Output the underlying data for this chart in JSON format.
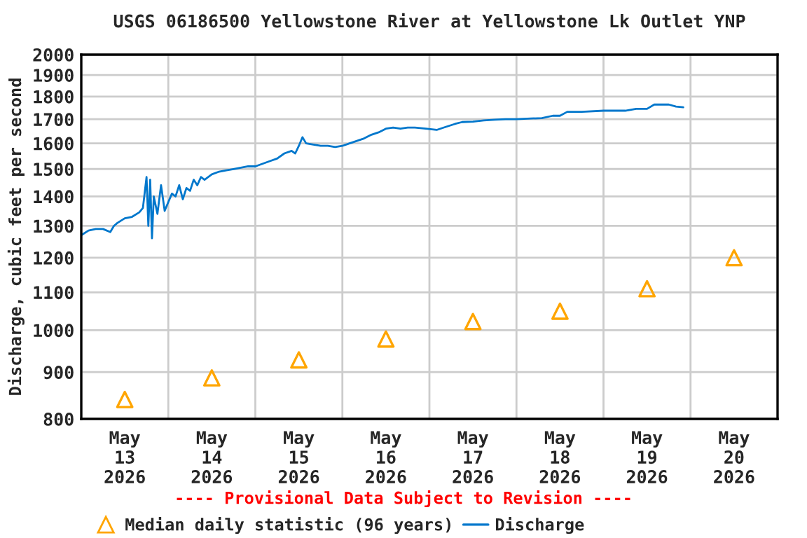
{
  "chart_data": {
    "type": "line",
    "title": "USGS 06186500 Yellowstone River at Yellowstone Lk Outlet YNP",
    "ylabel": "Discharge, cubic feet per second",
    "annotations": [
      "---- Provisional Data Subject to Revision ----"
    ],
    "log": "y",
    "grid": true,
    "legend": "bottom",
    "ylim": [
      800,
      2000
    ],
    "yticks": [
      800,
      900,
      1000,
      1100,
      1200,
      1300,
      1400,
      1500,
      1600,
      1700,
      1800,
      1900,
      2000
    ],
    "xlim": [
      "2026-05-13T00:00",
      "2026-05-21T00:00"
    ],
    "xticks": [
      {
        "value": "2026-05-13T00:00",
        "label": null
      },
      {
        "value": "2026-05-13T12:00",
        "label": "May\n13\n2026"
      },
      {
        "value": "2026-05-14T00:00",
        "label": null
      },
      {
        "value": "2026-05-14T12:00",
        "label": "May\n14\n2026"
      },
      {
        "value": "2026-05-15T00:00",
        "label": null
      },
      {
        "value": "2026-05-15T12:00",
        "label": "May\n15\n2026"
      },
      {
        "value": "2026-05-16T00:00",
        "label": null
      },
      {
        "value": "2026-05-16T12:00",
        "label": "May\n16\n2026"
      },
      {
        "value": "2026-05-17T00:00",
        "label": null
      },
      {
        "value": "2026-05-17T12:00",
        "label": "May\n17\n2026"
      },
      {
        "value": "2026-05-18T00:00",
        "label": null
      },
      {
        "value": "2026-05-18T12:00",
        "label": "May\n18\n2026"
      },
      {
        "value": "2026-05-19T00:00",
        "label": null
      },
      {
        "value": "2026-05-19T12:00",
        "label": "May\n19\n2026"
      },
      {
        "value": "2026-05-20T00:00",
        "label": null
      },
      {
        "value": "2026-05-20T12:00",
        "label": "May\n20\n2026"
      },
      {
        "value": "2026-05-21T00:00",
        "label": null
      }
    ],
    "series": [
      {
        "name": "Median daily statistic (96 years)",
        "type": "scatter",
        "marker": "triangle",
        "color": "#ffa500",
        "x": [
          "2026-05-13T12:00",
          "2026-05-14T12:00",
          "2026-05-15T12:00",
          "2026-05-16T12:00",
          "2026-05-17T12:00",
          "2026-05-18T12:00",
          "2026-05-19T12:00",
          "2026-05-20T12:00"
        ],
        "values": [
          840,
          887,
          928,
          978,
          1022,
          1049,
          1110,
          1200
        ]
      },
      {
        "name": "Discharge",
        "color": "#0077cc",
        "x": [
          "2026-05-13T00:00",
          "2026-05-13T02:00",
          "2026-05-13T04:00",
          "2026-05-13T06:00",
          "2026-05-13T08:00",
          "2026-05-13T09:00",
          "2026-05-13T10:00",
          "2026-05-13T12:00",
          "2026-05-13T14:00",
          "2026-05-13T16:00",
          "2026-05-13T17:00",
          "2026-05-13T18:00",
          "2026-05-13T18:30",
          "2026-05-13T19:00",
          "2026-05-13T19:30",
          "2026-05-13T20:00",
          "2026-05-13T21:00",
          "2026-05-13T22:00",
          "2026-05-13T23:00",
          "2026-05-14T00:00",
          "2026-05-14T01:00",
          "2026-05-14T02:00",
          "2026-05-14T03:00",
          "2026-05-14T04:00",
          "2026-05-14T05:00",
          "2026-05-14T06:00",
          "2026-05-14T07:00",
          "2026-05-14T08:00",
          "2026-05-14T09:00",
          "2026-05-14T10:00",
          "2026-05-14T12:00",
          "2026-05-14T14:00",
          "2026-05-14T16:00",
          "2026-05-14T18:00",
          "2026-05-14T20:00",
          "2026-05-14T22:00",
          "2026-05-15T00:00",
          "2026-05-15T02:00",
          "2026-05-15T04:00",
          "2026-05-15T06:00",
          "2026-05-15T08:00",
          "2026-05-15T10:00",
          "2026-05-15T11:00",
          "2026-05-15T12:00",
          "2026-05-15T13:00",
          "2026-05-15T14:00",
          "2026-05-15T16:00",
          "2026-05-15T18:00",
          "2026-05-15T20:00",
          "2026-05-15T22:00",
          "2026-05-16T00:00",
          "2026-05-16T02:00",
          "2026-05-16T04:00",
          "2026-05-16T06:00",
          "2026-05-16T08:00",
          "2026-05-16T10:00",
          "2026-05-16T12:00",
          "2026-05-16T14:00",
          "2026-05-16T16:00",
          "2026-05-16T18:00",
          "2026-05-16T20:00",
          "2026-05-16T23:00",
          "2026-05-17T02:00",
          "2026-05-17T04:00",
          "2026-05-17T07:00",
          "2026-05-17T09:00",
          "2026-05-17T12:00",
          "2026-05-17T15:00",
          "2026-05-17T18:00",
          "2026-05-17T21:00",
          "2026-05-18T00:00",
          "2026-05-18T04:00",
          "2026-05-18T07:00",
          "2026-05-18T10:00",
          "2026-05-18T12:00",
          "2026-05-18T14:00",
          "2026-05-18T18:00",
          "2026-05-19T00:00",
          "2026-05-19T06:00",
          "2026-05-19T09:00",
          "2026-05-19T12:00",
          "2026-05-19T14:00",
          "2026-05-19T18:00",
          "2026-05-19T20:00",
          "2026-05-19T22:00"
        ],
        "values": [
          1270,
          1285,
          1290,
          1290,
          1280,
          1300,
          1310,
          1325,
          1330,
          1345,
          1360,
          1470,
          1300,
          1460,
          1260,
          1400,
          1340,
          1440,
          1350,
          1380,
          1410,
          1400,
          1440,
          1390,
          1430,
          1420,
          1460,
          1440,
          1470,
          1460,
          1480,
          1490,
          1495,
          1500,
          1505,
          1510,
          1510,
          1520,
          1530,
          1540,
          1560,
          1570,
          1560,
          1590,
          1625,
          1600,
          1595,
          1590,
          1590,
          1585,
          1590,
          1600,
          1610,
          1620,
          1635,
          1645,
          1660,
          1665,
          1660,
          1665,
          1665,
          1660,
          1655,
          1665,
          1680,
          1688,
          1690,
          1695,
          1698,
          1700,
          1700,
          1703,
          1705,
          1715,
          1715,
          1732,
          1732,
          1737,
          1737,
          1745,
          1745,
          1764,
          1764,
          1755,
          1752
        ]
      }
    ]
  }
}
